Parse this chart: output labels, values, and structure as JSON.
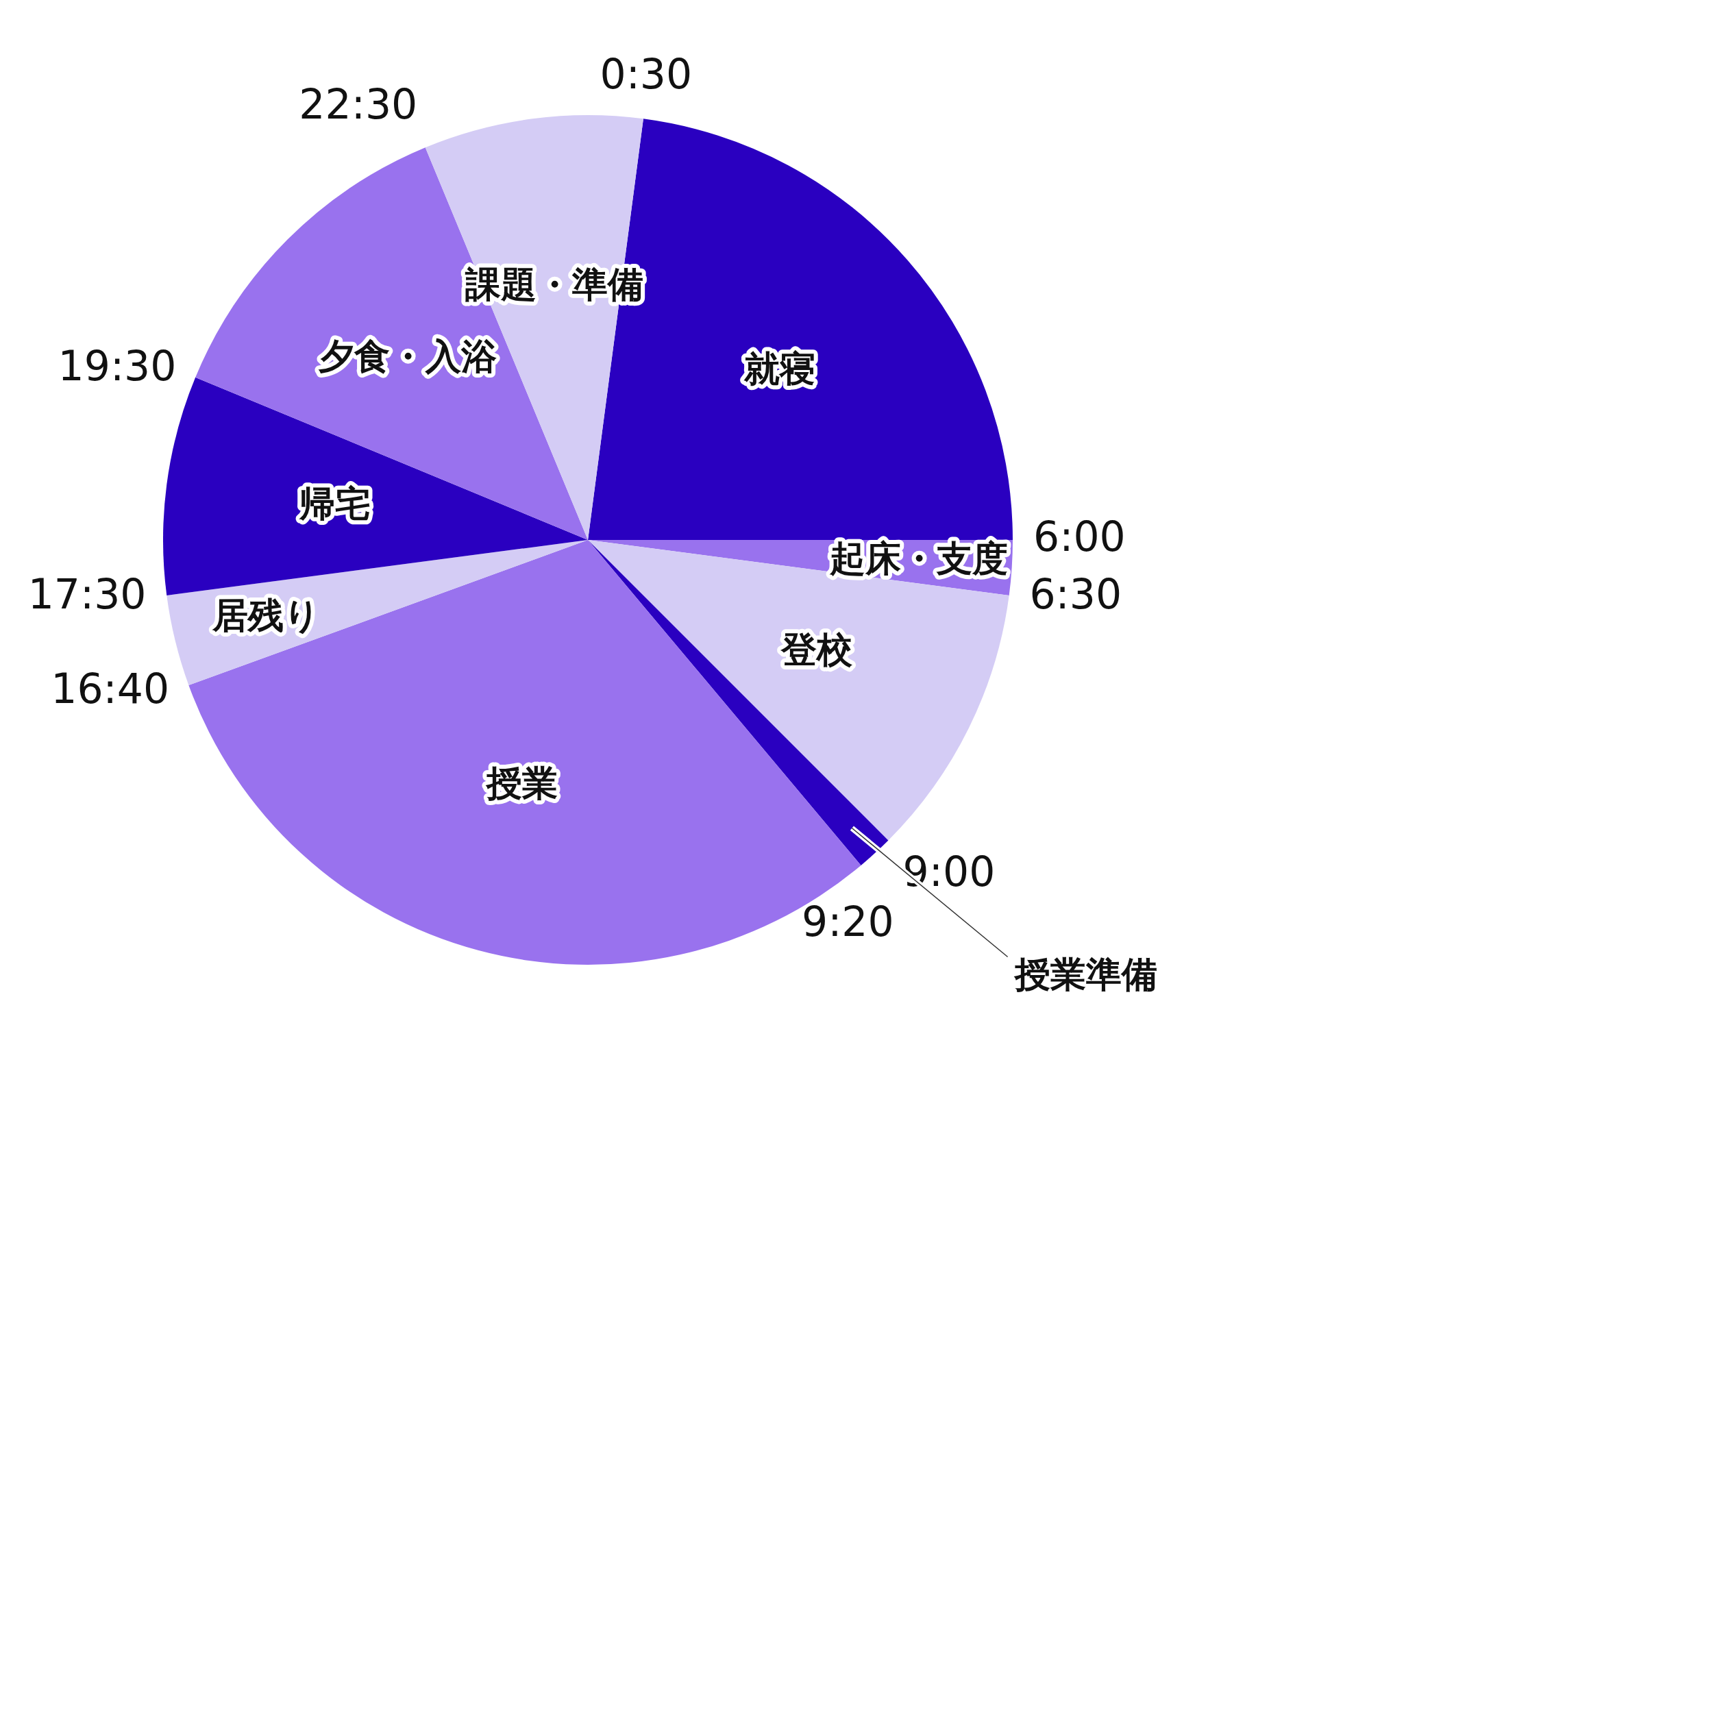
{
  "chart_data": {
    "type": "pie",
    "categories": [
      "就寝",
      "起床・支度",
      "登校",
      "授業準備",
      "授業",
      "居残り",
      "帰宅",
      "夕食・入浴",
      "課題・準備"
    ],
    "values": [
      22.9167,
      2.0833,
      10.4167,
      1.3889,
      30.5556,
      3.4722,
      8.3333,
      12.5,
      8.3333
    ],
    "colors": [
      "#2a00c0",
      "#9972ee",
      "#d4ccf5",
      "#2a00c0",
      "#9972ee",
      "#d4ccf5",
      "#2a00c0",
      "#9972ee",
      "#d4ccf5"
    ],
    "annotations": [
      "6:00",
      "6:30",
      "9:00",
      "9:20",
      "16:40",
      "17:30",
      "19:30",
      "22:30",
      "0:30"
    ],
    "legend": false
  }
}
